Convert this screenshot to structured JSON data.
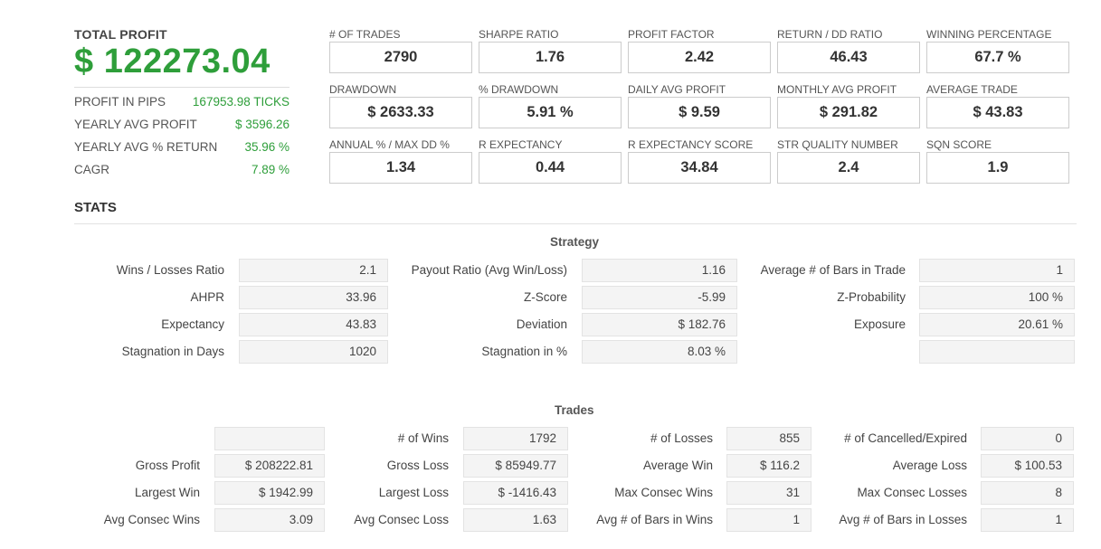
{
  "profit": {
    "label": "TOTAL PROFIT",
    "value": "$ 122273.04",
    "rows": [
      {
        "label": "PROFIT IN PIPS",
        "value": "167953.98 TICKS"
      },
      {
        "label": "YEARLY AVG PROFIT",
        "value": "$ 3596.26"
      },
      {
        "label": "YEARLY AVG % RETURN",
        "value": "35.96 %"
      },
      {
        "label": "CAGR",
        "value": "7.89 %"
      }
    ]
  },
  "metrics": [
    {
      "label": "# OF TRADES",
      "value": "2790"
    },
    {
      "label": "SHARPE RATIO",
      "value": "1.76"
    },
    {
      "label": "PROFIT FACTOR",
      "value": "2.42"
    },
    {
      "label": "RETURN / DD RATIO",
      "value": "46.43"
    },
    {
      "label": "WINNING PERCENTAGE",
      "value": "67.7 %"
    },
    {
      "label": "DRAWDOWN",
      "value": "$ 2633.33"
    },
    {
      "label": "% DRAWDOWN",
      "value": "5.91 %"
    },
    {
      "label": "DAILY AVG PROFIT",
      "value": "$ 9.59"
    },
    {
      "label": "MONTHLY AVG PROFIT",
      "value": "$ 291.82"
    },
    {
      "label": "AVERAGE TRADE",
      "value": "$ 43.83"
    },
    {
      "label": "ANNUAL % / MAX DD %",
      "value": "1.34"
    },
    {
      "label": "R EXPECTANCY",
      "value": "0.44"
    },
    {
      "label": "R EXPECTANCY SCORE",
      "value": "34.84"
    },
    {
      "label": "STR QUALITY NUMBER",
      "value": "2.4"
    },
    {
      "label": "SQN SCORE",
      "value": "1.9"
    }
  ],
  "stats": {
    "title": "STATS",
    "strategy": {
      "title": "Strategy",
      "rows": [
        [
          {
            "label": "Wins / Losses Ratio",
            "value": "2.1"
          },
          {
            "label": "Payout Ratio (Avg Win/Loss)",
            "value": "1.16"
          },
          {
            "label": "Average # of Bars in Trade",
            "value": "1"
          }
        ],
        [
          {
            "label": "AHPR",
            "value": "33.96"
          },
          {
            "label": "Z-Score",
            "value": "-5.99"
          },
          {
            "label": "Z-Probability",
            "value": "100 %"
          }
        ],
        [
          {
            "label": "Expectancy",
            "value": "43.83"
          },
          {
            "label": "Deviation",
            "value": "$ 182.76"
          },
          {
            "label": "Exposure",
            "value": "20.61 %"
          }
        ],
        [
          {
            "label": "Stagnation in Days",
            "value": "1020"
          },
          {
            "label": "Stagnation in %",
            "value": "8.03 %"
          },
          {
            "label": "",
            "value": ""
          }
        ]
      ]
    },
    "trades": {
      "title": "Trades",
      "rows": [
        [
          {
            "label": "",
            "value": ""
          },
          {
            "label": "# of Wins",
            "value": "1792"
          },
          {
            "label": "# of Losses",
            "value": "855"
          },
          {
            "label": "# of Cancelled/Expired",
            "value": "0"
          }
        ],
        [
          {
            "label": "Gross Profit",
            "value": "$ 208222.81"
          },
          {
            "label": "Gross Loss",
            "value": "$ 85949.77"
          },
          {
            "label": "Average Win",
            "value": "$ 116.2"
          },
          {
            "label": "Average Loss",
            "value": "$ 100.53"
          }
        ],
        [
          {
            "label": "Largest Win",
            "value": "$ 1942.99"
          },
          {
            "label": "Largest Loss",
            "value": "$ -1416.43"
          },
          {
            "label": "Max Consec Wins",
            "value": "31"
          },
          {
            "label": "Max Consec Losses",
            "value": "8"
          }
        ],
        [
          {
            "label": "Avg Consec Wins",
            "value": "3.09"
          },
          {
            "label": "Avg Consec Loss",
            "value": "1.63"
          },
          {
            "label": "Avg # of Bars in Wins",
            "value": "1"
          },
          {
            "label": "Avg # of Bars in Losses",
            "value": "1"
          }
        ]
      ]
    }
  }
}
